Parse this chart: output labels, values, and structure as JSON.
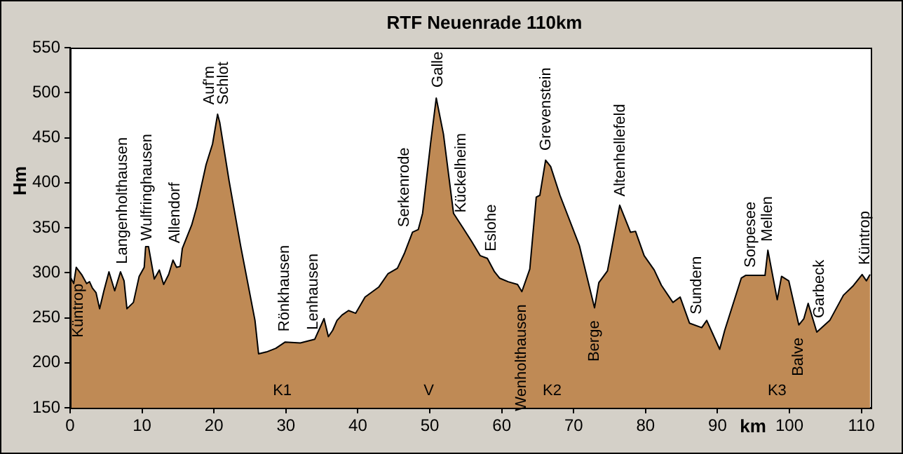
{
  "chart_data": {
    "type": "area",
    "title": "RTF Neuenrade 110km",
    "xlabel": "km",
    "ylabel": "Hm",
    "x": [
      0,
      0.5,
      0.85,
      1.6,
      2.3,
      2.7,
      3.1,
      3.6,
      4.1,
      4.7,
      5.4,
      6.2,
      7.0,
      7.5,
      7.9,
      8.8,
      9.6,
      10.3,
      10.5,
      10.9,
      11.7,
      12.4,
      13.0,
      13.7,
      14.3,
      14.8,
      15.3,
      15.6,
      16.9,
      17.6,
      18.9,
      19.8,
      20.5,
      20.8,
      22.1,
      23.7,
      25.7,
      26.2,
      27.3,
      28.6,
      29.9,
      32,
      34.0,
      35.3,
      35.9,
      36.5,
      37.1,
      37.8,
      38.7,
      39.7,
      41.0,
      42.9,
      44.2,
      45.5,
      46.5,
      47.6,
      48.4,
      49.0,
      50.1,
      50.9,
      51.9,
      53.3,
      54.6,
      55.8,
      57.0,
      58.0,
      59.0,
      59.7,
      60.9,
      62.2,
      62.8,
      63.9,
      64.8,
      65.3,
      66.1,
      66.8,
      68.1,
      70.8,
      72.9,
      73.5,
      74.7,
      75.2,
      76.4,
      77.9,
      78.6,
      79.8,
      81.2,
      82.2,
      83.8,
      84.8,
      86.1,
      87.8,
      88.5,
      90.3,
      91.0,
      93.3,
      93.9,
      96.6,
      97.0,
      98.3,
      98.9,
      99.9,
      101.3,
      102.0,
      102.6,
      103.8,
      105.6,
      107.5,
      108.8,
      110.1,
      110.7,
      111.2
    ],
    "series": [
      {
        "color": "#bf8a55",
        "values": [
          296,
          288,
          306,
          298,
          288,
          290,
          283,
          278,
          260,
          280,
          301,
          280,
          301,
          291,
          260,
          267,
          296,
          306,
          329,
          329,
          293,
          303,
          287,
          298,
          314,
          306,
          307,
          327,
          353,
          373,
          420,
          443,
          476,
          467,
          402,
          330,
          247,
          210,
          212,
          216,
          223,
          222,
          226,
          249,
          229,
          236,
          247,
          253,
          258,
          255,
          273,
          284,
          299,
          305,
          322,
          345,
          348,
          366,
          443,
          494,
          454,
          366,
          350,
          335,
          319,
          316,
          301,
          294,
          290,
          287,
          279,
          304,
          384,
          386,
          425,
          418,
          386,
          330,
          261,
          289,
          302,
          323,
          375,
          345,
          346,
          319,
          303,
          286,
          267,
          273,
          244,
          239,
          247,
          215,
          236,
          294,
          297,
          297,
          325,
          270,
          296,
          291,
          242,
          249,
          266,
          234,
          247,
          275,
          285,
          298,
          291,
          298
        ]
      }
    ],
    "xlim": [
      0,
      111.3
    ],
    "ylim": [
      150,
      550
    ],
    "xticks": [
      0,
      10,
      20,
      30,
      40,
      50,
      60,
      70,
      80,
      90,
      100,
      110
    ],
    "yticks": [
      150,
      200,
      250,
      300,
      350,
      400,
      450,
      500,
      550
    ],
    "grid": false,
    "legend": false,
    "marker": "none",
    "line_style": "solid",
    "annotations": [
      {
        "text": "Küntrop",
        "x": 1.2,
        "y": 302
      },
      {
        "text": "Langenholthausen",
        "x": 7.3,
        "y": 305
      },
      {
        "text": "Wulfringhausen",
        "x": 10.7,
        "y": 331
      },
      {
        "text": "Allendorf",
        "x": 14.6,
        "y": 328
      },
      {
        "text": "Auf'm\nSchlot",
        "x": 20.4,
        "y": 482
      },
      {
        "text": "Rönkhausen",
        "x": 29.8,
        "y": 230
      },
      {
        "text": "Lenhausen",
        "x": 33.8,
        "y": 232
      },
      {
        "text": "Serkenrode",
        "x": 46.5,
        "y": 346
      },
      {
        "text": "Galle",
        "x": 51.2,
        "y": 501
      },
      {
        "text": "Kückelheim",
        "x": 54.4,
        "y": 362
      },
      {
        "text": "Eslohe",
        "x": 58.6,
        "y": 319
      },
      {
        "text": "Wenholthausen",
        "x": 62.8,
        "y": 279
      },
      {
        "text": "Grevenstein",
        "x": 66.2,
        "y": 431
      },
      {
        "text": "Berge",
        "x": 72.9,
        "y": 261
      },
      {
        "text": "Altenhellefeld",
        "x": 76.5,
        "y": 380
      },
      {
        "text": "Sundern",
        "x": 87.1,
        "y": 249
      },
      {
        "text": "Sorpesee",
        "x": 94.6,
        "y": 301
      },
      {
        "text": "Mellen",
        "x": 97.0,
        "y": 330
      },
      {
        "text": "Balve",
        "x": 101.3,
        "y": 242
      },
      {
        "text": "Garbeck",
        "x": 104.2,
        "y": 245
      },
      {
        "text": "Küntrop",
        "x": 110.5,
        "y": 304
      },
      "K1",
      "V",
      "K2",
      "K3"
    ]
  }
}
